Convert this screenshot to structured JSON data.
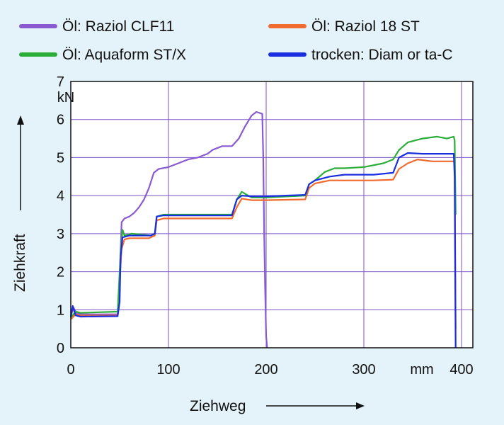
{
  "chart_data": {
    "type": "line",
    "title": "",
    "xlabel": "Ziehweg",
    "ylabel": "Ziehkraft",
    "x_unit": "mm",
    "y_unit": "kN",
    "xlim": [
      0,
      400
    ],
    "ylim": [
      0,
      7
    ],
    "x_ticks": [
      "0",
      "100",
      "200",
      "300",
      "400"
    ],
    "y_ticks": [
      "0",
      "1",
      "2",
      "3",
      "4",
      "5",
      "6",
      "7"
    ],
    "grid": true,
    "legend_position": "top",
    "series": [
      {
        "name": "Öl: Raziol CLF11",
        "color": "#8a5ad0",
        "points": [
          [
            0,
            0.85
          ],
          [
            3,
            1.05
          ],
          [
            6,
            0.9
          ],
          [
            12,
            0.88
          ],
          [
            30,
            0.88
          ],
          [
            48,
            0.88
          ],
          [
            50,
            1.8
          ],
          [
            52,
            3.3
          ],
          [
            55,
            3.4
          ],
          [
            60,
            3.45
          ],
          [
            65,
            3.55
          ],
          [
            70,
            3.7
          ],
          [
            75,
            3.9
          ],
          [
            80,
            4.2
          ],
          [
            85,
            4.6
          ],
          [
            90,
            4.7
          ],
          [
            100,
            4.75
          ],
          [
            110,
            4.85
          ],
          [
            120,
            4.95
          ],
          [
            130,
            5.0
          ],
          [
            140,
            5.1
          ],
          [
            145,
            5.2
          ],
          [
            155,
            5.3
          ],
          [
            165,
            5.3
          ],
          [
            172,
            5.5
          ],
          [
            178,
            5.8
          ],
          [
            185,
            6.1
          ],
          [
            190,
            6.2
          ],
          [
            196,
            6.15
          ],
          [
            197,
            5.0
          ],
          [
            198,
            3.0
          ],
          [
            199,
            1.5
          ],
          [
            200,
            0.3
          ],
          [
            201,
            0.0
          ]
        ]
      },
      {
        "name": "Öl: Raziol 18 ST",
        "color": "#f26b2e",
        "points": [
          [
            0,
            0.75
          ],
          [
            5,
            0.88
          ],
          [
            10,
            0.85
          ],
          [
            48,
            0.85
          ],
          [
            52,
            2.6
          ],
          [
            55,
            2.85
          ],
          [
            60,
            2.88
          ],
          [
            80,
            2.88
          ],
          [
            86,
            2.95
          ],
          [
            88,
            3.35
          ],
          [
            95,
            3.4
          ],
          [
            165,
            3.4
          ],
          [
            170,
            3.7
          ],
          [
            175,
            3.92
          ],
          [
            185,
            3.88
          ],
          [
            200,
            3.88
          ],
          [
            240,
            3.9
          ],
          [
            244,
            4.2
          ],
          [
            250,
            4.32
          ],
          [
            265,
            4.4
          ],
          [
            280,
            4.4
          ],
          [
            310,
            4.4
          ],
          [
            330,
            4.42
          ],
          [
            336,
            4.7
          ],
          [
            345,
            4.85
          ],
          [
            355,
            4.95
          ],
          [
            370,
            4.9
          ],
          [
            390,
            4.9
          ],
          [
            393,
            4.9
          ],
          [
            394,
            0.5
          ]
        ]
      },
      {
        "name": "Öl: Aquaform ST/X",
        "color": "#2bad3a",
        "points": [
          [
            0,
            0.8
          ],
          [
            5,
            0.95
          ],
          [
            10,
            0.92
          ],
          [
            48,
            0.95
          ],
          [
            51,
            2.5
          ],
          [
            53,
            3.1
          ],
          [
            55,
            2.95
          ],
          [
            62,
            3.0
          ],
          [
            82,
            2.95
          ],
          [
            86,
            3.0
          ],
          [
            88,
            3.45
          ],
          [
            95,
            3.5
          ],
          [
            165,
            3.5
          ],
          [
            170,
            3.9
          ],
          [
            175,
            4.1
          ],
          [
            185,
            3.95
          ],
          [
            200,
            3.95
          ],
          [
            240,
            4.0
          ],
          [
            244,
            4.3
          ],
          [
            250,
            4.4
          ],
          [
            260,
            4.62
          ],
          [
            270,
            4.72
          ],
          [
            280,
            4.72
          ],
          [
            300,
            4.75
          ],
          [
            320,
            4.85
          ],
          [
            330,
            4.95
          ],
          [
            336,
            5.2
          ],
          [
            345,
            5.4
          ],
          [
            360,
            5.5
          ],
          [
            375,
            5.55
          ],
          [
            385,
            5.5
          ],
          [
            392,
            5.55
          ],
          [
            393,
            5.45
          ],
          [
            394,
            3.5
          ]
        ]
      },
      {
        "name": "trocken: Diam or ta-C",
        "color": "#1a2ee0",
        "points": [
          [
            0,
            0.8
          ],
          [
            2,
            1.1
          ],
          [
            5,
            0.85
          ],
          [
            10,
            0.82
          ],
          [
            48,
            0.83
          ],
          [
            50,
            1.2
          ],
          [
            51,
            2.4
          ],
          [
            53,
            2.9
          ],
          [
            60,
            2.95
          ],
          [
            82,
            2.95
          ],
          [
            86,
            3.0
          ],
          [
            88,
            3.45
          ],
          [
            95,
            3.48
          ],
          [
            165,
            3.48
          ],
          [
            170,
            3.9
          ],
          [
            175,
            4.0
          ],
          [
            185,
            3.98
          ],
          [
            200,
            3.98
          ],
          [
            240,
            4.02
          ],
          [
            244,
            4.3
          ],
          [
            250,
            4.4
          ],
          [
            265,
            4.5
          ],
          [
            280,
            4.55
          ],
          [
            310,
            4.55
          ],
          [
            330,
            4.6
          ],
          [
            336,
            5.0
          ],
          [
            345,
            5.12
          ],
          [
            360,
            5.1
          ],
          [
            375,
            5.1
          ],
          [
            392,
            5.1
          ],
          [
            393,
            4.5
          ],
          [
            394,
            0.0
          ]
        ]
      }
    ]
  }
}
